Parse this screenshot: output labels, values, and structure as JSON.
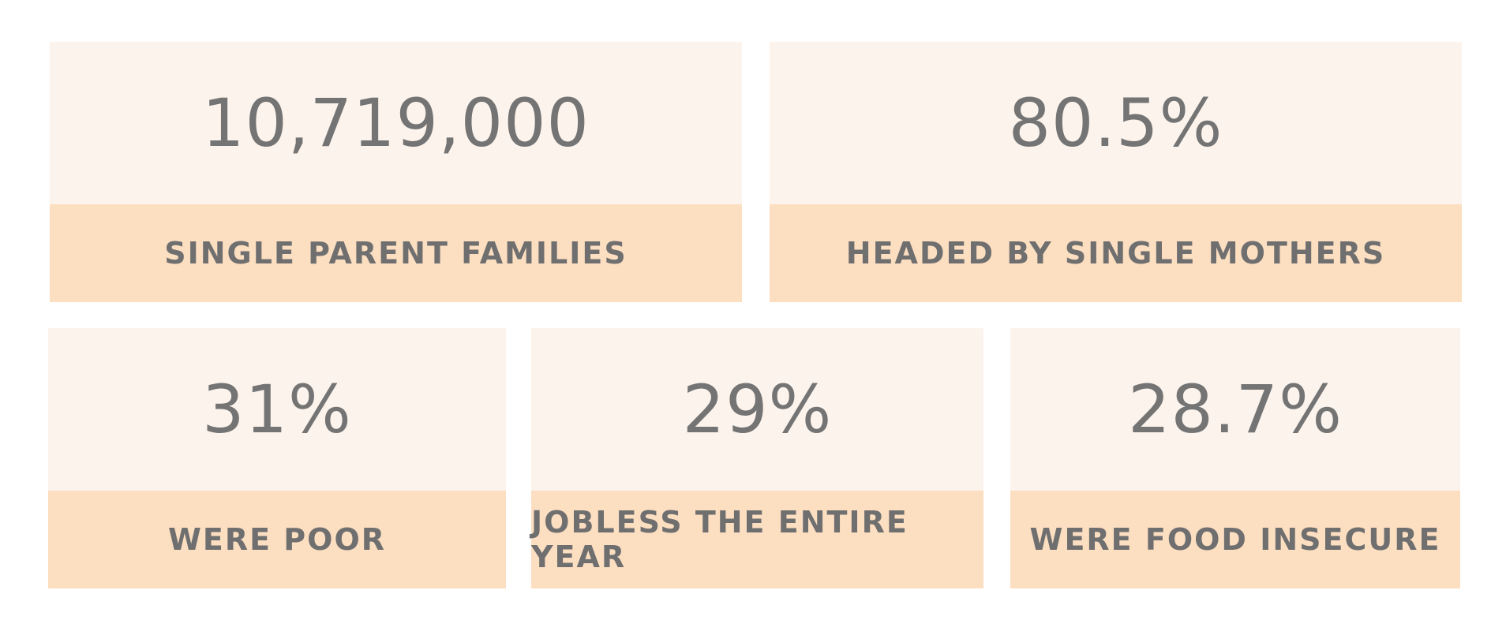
{
  "colors": {
    "value_background": "#fcf3ec",
    "label_background": "#fcdec1",
    "text": "#747474"
  },
  "stats": [
    {
      "value": "10,719,000",
      "label": "SINGLE PARENT FAMILIES"
    },
    {
      "value": "80.5%",
      "label": "HEADED BY SINGLE MOTHERS"
    },
    {
      "value": "31%",
      "label": "WERE POOR"
    },
    {
      "value": "29%",
      "label": "JOBLESS THE ENTIRE YEAR"
    },
    {
      "value": "28.7%",
      "label": "WERE FOOD INSECURE"
    }
  ]
}
